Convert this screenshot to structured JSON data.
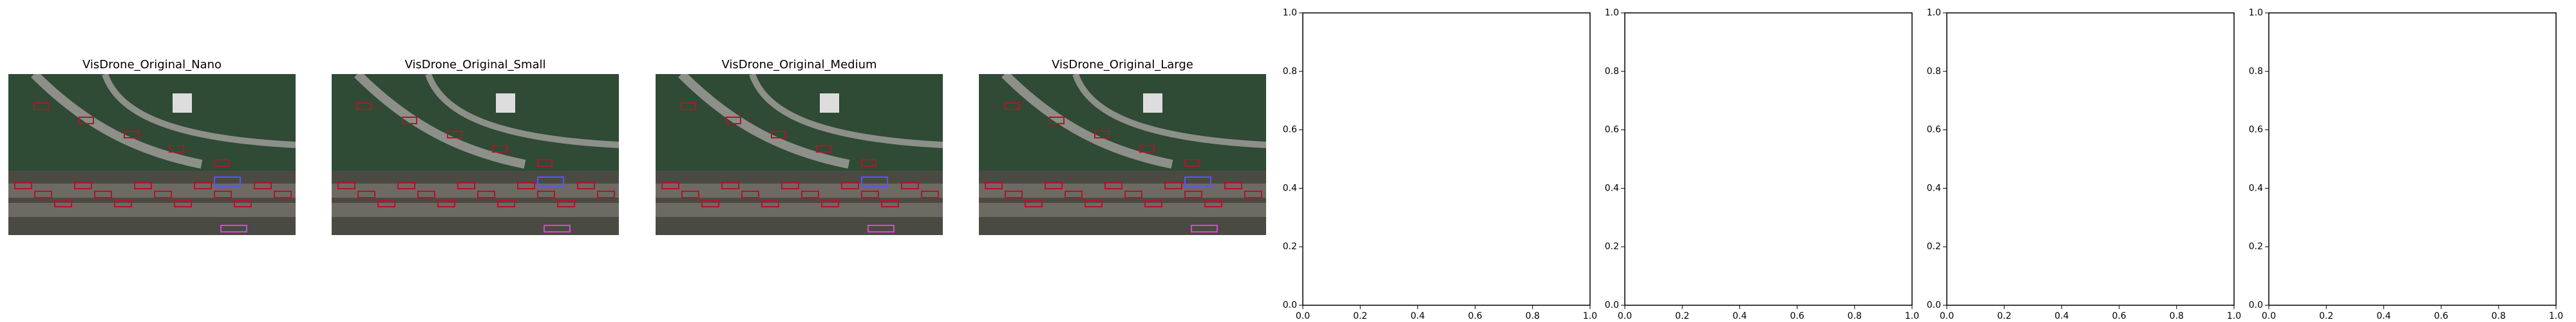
{
  "chart_data": [
    {
      "type": "image",
      "title": "VisDrone_Original_Nano"
    },
    {
      "type": "image",
      "title": "VisDrone_Original_Small"
    },
    {
      "type": "image",
      "title": "VisDrone_Original_Medium"
    },
    {
      "type": "image",
      "title": "VisDrone_Original_Large"
    },
    {
      "type": "empty",
      "xlim": [
        0,
        1
      ],
      "ylim": [
        0,
        1
      ],
      "xticks": [
        {
          "value": 0,
          "label": "0.0"
        },
        0.2,
        0.4,
        0.6,
        0.8,
        {
          "value": 1,
          "label": "1.0"
        }
      ],
      "yticks": [
        {
          "value": 0,
          "label": "0.0"
        },
        0.2,
        0.4,
        0.6,
        0.8,
        {
          "value": 1,
          "label": "1.0"
        }
      ]
    },
    {
      "type": "empty",
      "xlim": [
        0,
        1
      ],
      "ylim": [
        0,
        1
      ],
      "xticks": [
        {
          "value": 0,
          "label": "0.0"
        },
        0.2,
        0.4,
        0.6,
        0.8,
        {
          "value": 1,
          "label": "1.0"
        }
      ],
      "yticks": [
        {
          "value": 0,
          "label": "0.0"
        },
        0.2,
        0.4,
        0.6,
        0.8,
        {
          "value": 1,
          "label": "1.0"
        }
      ]
    },
    {
      "type": "empty",
      "xlim": [
        0,
        1
      ],
      "ylim": [
        0,
        1
      ],
      "xticks": [
        {
          "value": 0,
          "label": "0.0"
        },
        0.2,
        0.4,
        0.6,
        0.8,
        {
          "value": 1,
          "label": "1.0"
        }
      ],
      "yticks": [
        {
          "value": 0,
          "label": "0.0"
        },
        0.2,
        0.4,
        0.6,
        0.8,
        {
          "value": 1,
          "label": "1.0"
        }
      ]
    },
    {
      "type": "empty",
      "xlim": [
        0,
        1
      ],
      "ylim": [
        0,
        1
      ],
      "xticks": [
        {
          "value": 0,
          "label": "0.0"
        },
        0.2,
        0.4,
        0.6,
        0.8,
        {
          "value": 1,
          "label": "1.0"
        }
      ],
      "yticks": [
        {
          "value": 0,
          "label": "0.0"
        },
        0.2,
        0.4,
        0.6,
        0.8,
        {
          "value": 1,
          "label": "1.0"
        }
      ]
    }
  ]
}
